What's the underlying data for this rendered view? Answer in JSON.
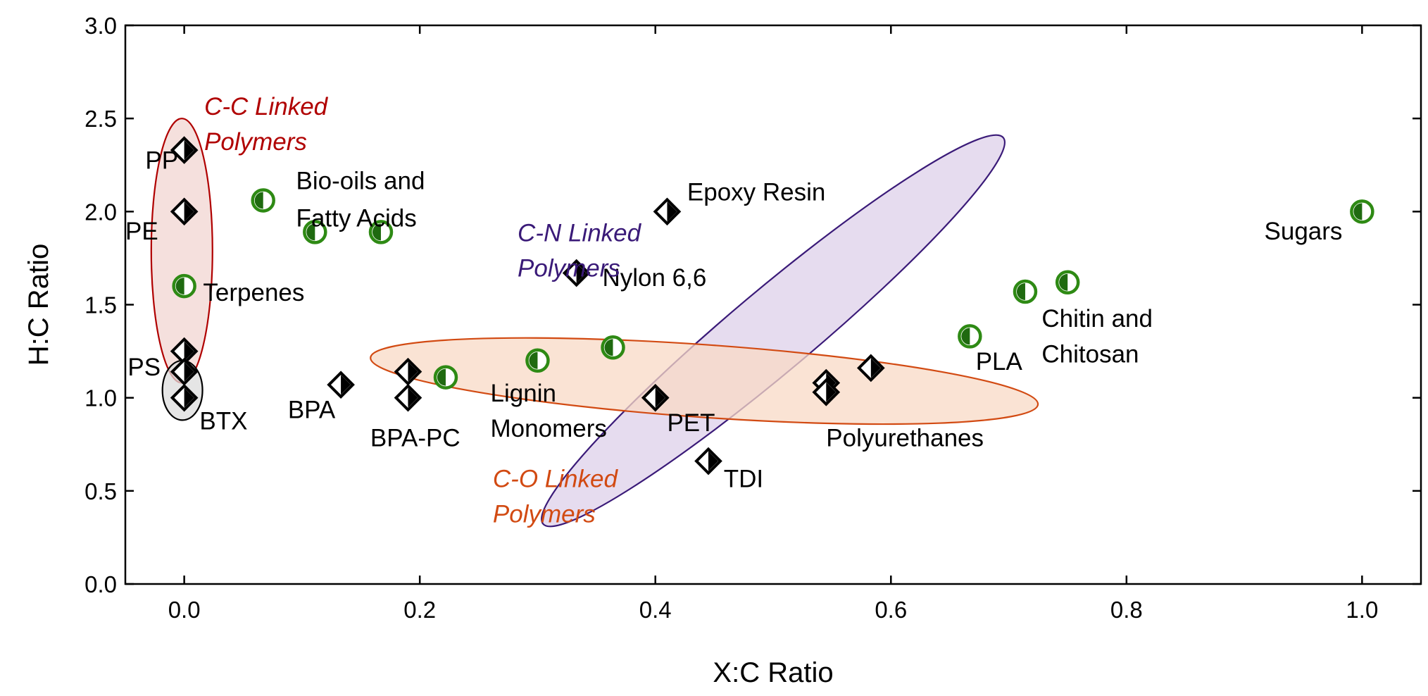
{
  "chart_data": {
    "type": "scatter",
    "xlabel": "X:C Ratio",
    "ylabel": "H:C Ratio",
    "xlim": [
      -0.05,
      1.05
    ],
    "ylim": [
      0,
      3
    ],
    "xticks": [
      "0.0",
      "0.2",
      "0.4",
      "0.6",
      "0.8",
      "1.0"
    ],
    "yticks": [
      "0.0",
      "0.5",
      "1.0",
      "1.5",
      "2.0",
      "2.5",
      "3.0"
    ],
    "grid": false,
    "series": [
      {
        "marker": "diamond",
        "points": [
          {
            "x": 0.0,
            "y": 2.33
          },
          {
            "x": 0.0,
            "y": 2.0
          },
          {
            "x": 0.0,
            "y": 1.25
          },
          {
            "x": 0.0,
            "y": 1.14
          },
          {
            "x": 0.0,
            "y": 1.0
          },
          {
            "x": 0.133,
            "y": 1.07
          },
          {
            "x": 0.19,
            "y": 1.14
          },
          {
            "x": 0.19,
            "y": 1.0
          },
          {
            "x": 0.333,
            "y": 1.67
          },
          {
            "x": 0.41,
            "y": 2.0
          },
          {
            "x": 0.4,
            "y": 1.0
          },
          {
            "x": 0.445,
            "y": 0.66
          },
          {
            "x": 0.545,
            "y": 1.08
          },
          {
            "x": 0.545,
            "y": 1.03
          },
          {
            "x": 0.583,
            "y": 1.16
          }
        ]
      },
      {
        "marker": "circle",
        "points": [
          {
            "x": 0.067,
            "y": 2.06
          },
          {
            "x": 0.111,
            "y": 1.89
          },
          {
            "x": 0.167,
            "y": 1.89
          },
          {
            "x": 0.0,
            "y": 1.6
          },
          {
            "x": 0.222,
            "y": 1.11
          },
          {
            "x": 0.3,
            "y": 1.2
          },
          {
            "x": 0.364,
            "y": 1.27
          },
          {
            "x": 0.667,
            "y": 1.33
          },
          {
            "x": 0.714,
            "y": 1.57
          },
          {
            "x": 0.75,
            "y": 1.62
          },
          {
            "x": 1.0,
            "y": 2.0
          }
        ]
      }
    ],
    "point_labels": [
      {
        "text": "PP",
        "x": -0.033,
        "y": 2.23,
        "anchor": "start"
      },
      {
        "text": "PE",
        "x": -0.05,
        "y": 1.85,
        "anchor": "start"
      },
      {
        "text": "Terpenes",
        "x": 0.016,
        "y": 1.52,
        "anchor": "start"
      },
      {
        "text": "PS",
        "x": -0.048,
        "y": 1.12,
        "anchor": "start"
      },
      {
        "text": "BTX",
        "x": 0.013,
        "y": 0.83,
        "anchor": "start"
      },
      {
        "text": "BPA",
        "x": 0.088,
        "y": 0.89,
        "anchor": "start"
      },
      {
        "text": "BPA-PC",
        "x": 0.158,
        "y": 0.74,
        "anchor": "start"
      },
      {
        "text": "Bio-oils and",
        "x": 0.095,
        "y": 2.12,
        "anchor": "start"
      },
      {
        "text": "Fatty Acids",
        "x": 0.095,
        "y": 1.92,
        "anchor": "start"
      },
      {
        "text": "Lignin",
        "x": 0.26,
        "y": 0.98,
        "anchor": "start"
      },
      {
        "text": "Monomers",
        "x": 0.26,
        "y": 0.79,
        "anchor": "start"
      },
      {
        "text": "Nylon 6,6",
        "x": 0.355,
        "y": 1.6,
        "anchor": "start"
      },
      {
        "text": "Epoxy Resin",
        "x": 0.427,
        "y": 2.06,
        "anchor": "start"
      },
      {
        "text": "PET",
        "x": 0.41,
        "y": 0.82,
        "anchor": "start"
      },
      {
        "text": "TDI",
        "x": 0.458,
        "y": 0.52,
        "anchor": "start"
      },
      {
        "text": "Polyurethanes",
        "x": 0.545,
        "y": 0.74,
        "anchor": "start"
      },
      {
        "text": "PLA",
        "x": 0.672,
        "y": 1.15,
        "anchor": "start"
      },
      {
        "text": "Chitin and",
        "x": 0.728,
        "y": 1.38,
        "anchor": "start"
      },
      {
        "text": "Chitosan",
        "x": 0.728,
        "y": 1.19,
        "anchor": "start"
      },
      {
        "text": "Sugars",
        "x": 0.917,
        "y": 1.85,
        "anchor": "start"
      }
    ],
    "groups": [
      {
        "name_lines": [
          "C-C Linked",
          "Polymers"
        ],
        "color": "#b00000",
        "fill": "#f2d5d2",
        "ellipse": {
          "cx": -0.002,
          "cy": 1.79,
          "rx": 0.026,
          "ry": 0.71,
          "angle": 0
        },
        "label": {
          "x": 0.017,
          "y": 2.52
        }
      },
      {
        "name_lines": [
          "C-N Linked",
          "Polymers"
        ],
        "color": "#3a1a78",
        "fill": "#ddd0ea",
        "ellipse": {
          "cx": 0.5,
          "cy": 1.36,
          "rx": 0.255,
          "ry": 0.22,
          "angle": 40
        },
        "label": {
          "x": 0.283,
          "y": 1.84
        }
      },
      {
        "name_lines": [
          "C-O Linked",
          "Polymers"
        ],
        "color": "#d24a12",
        "fill": "#f8d9c5",
        "ellipse": {
          "cx": 0.4415,
          "cy": 1.09,
          "rx": 0.284,
          "ry": 0.195,
          "angle": -4
        },
        "label": {
          "x": 0.262,
          "y": 0.52
        }
      },
      {
        "name_lines": [],
        "color": "#000000",
        "fill": "#dcdcdc",
        "ellipse": {
          "cx": -0.0015,
          "cy": 1.04,
          "rx": 0.017,
          "ry": 0.16,
          "angle": 0
        },
        "label": null
      }
    ],
    "colors": {
      "diamond_fill": "#000000",
      "circle_fill": "#1f6a10",
      "circle_outline": "#2e8a14"
    }
  }
}
